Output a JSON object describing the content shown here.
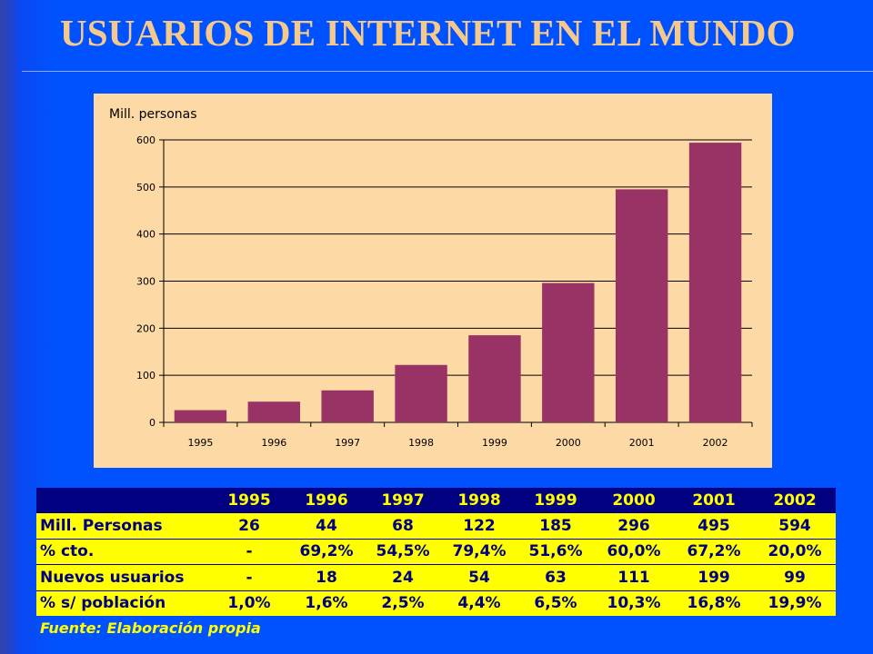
{
  "slide": {
    "title": "USUARIOS DE INTERNET EN EL MUNDO",
    "source": "Fuente: Elaboración propia",
    "colors": {
      "title": "#f5c98c",
      "bar": "#993366",
      "chart_bg": "#fcd9a5",
      "table_header_bg": "#000080",
      "table_header_text": "#ffff00",
      "table_body_bg": "#ffff00",
      "table_body_text": "#000080"
    }
  },
  "chart_data": {
    "type": "bar",
    "ylabel": "Mill. personas",
    "categories": [
      "1995",
      "1996",
      "1997",
      "1998",
      "1999",
      "2000",
      "2001",
      "2002"
    ],
    "values": [
      26,
      44,
      68,
      122,
      185,
      296,
      495,
      594
    ],
    "ylim": [
      0,
      600
    ],
    "yticks": [
      "0",
      "100",
      "200",
      "300",
      "400",
      "500",
      "600"
    ],
    "grid": true
  },
  "table": {
    "columns": [
      "",
      "1995",
      "1996",
      "1997",
      "1998",
      "1999",
      "2000",
      "2001",
      "2002"
    ],
    "rows": [
      [
        "Mill. Personas",
        "26",
        "44",
        "68",
        "122",
        "185",
        "296",
        "495",
        "594"
      ],
      [
        "% cto.",
        "-",
        "69,2%",
        "54,5%",
        "79,4%",
        "51,6%",
        "60,0%",
        "67,2%",
        "20,0%"
      ],
      [
        "Nuevos usuarios",
        "-",
        "18",
        "24",
        "54",
        "63",
        "111",
        "199",
        "99"
      ],
      [
        "% s/ población",
        "1,0%",
        "1,6%",
        "2,5%",
        "4,4%",
        "6,5%",
        "10,3%",
        "16,8%",
        "19,9%"
      ]
    ]
  }
}
